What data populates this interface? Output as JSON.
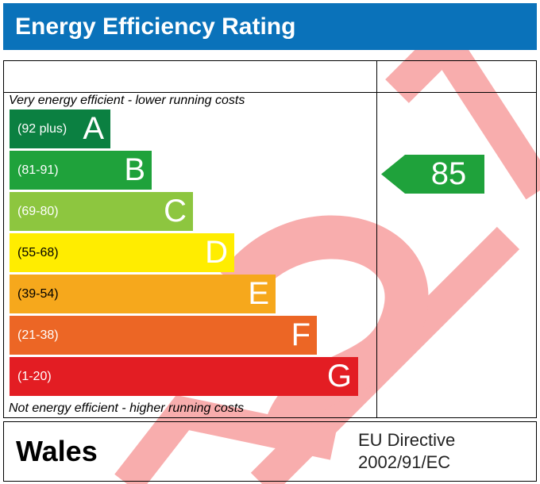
{
  "header": {
    "title": "Energy Efficiency Rating"
  },
  "captions": {
    "top": "Very energy efficient - lower running costs",
    "bottom": "Not energy efficient - higher running costs"
  },
  "chart_data": {
    "type": "bar",
    "title": "Energy Efficiency Rating",
    "bands": [
      {
        "letter": "A",
        "range": "(92 plus)",
        "min": 92,
        "max": 100,
        "color": "#0b8041"
      },
      {
        "letter": "B",
        "range": "(81-91)",
        "min": 81,
        "max": 91,
        "color": "#1fa23b"
      },
      {
        "letter": "C",
        "range": "(69-80)",
        "min": 69,
        "max": 80,
        "color": "#8dc63f"
      },
      {
        "letter": "D",
        "range": "(55-68)",
        "min": 55,
        "max": 68,
        "color": "#ffed00"
      },
      {
        "letter": "E",
        "range": "(39-54)",
        "min": 39,
        "max": 54,
        "color": "#f6a81c"
      },
      {
        "letter": "F",
        "range": "(21-38)",
        "min": 21,
        "max": 38,
        "color": "#ec6625"
      },
      {
        "letter": "G",
        "range": "(1-20)",
        "min": 1,
        "max": 20,
        "color": "#e31d23"
      }
    ],
    "current_rating": {
      "value": "85",
      "band": "B",
      "color": "#1fa23b"
    }
  },
  "footer": {
    "country": "Wales",
    "directive_line1": "EU Directive",
    "directive_line2": "2002/91/EC"
  }
}
